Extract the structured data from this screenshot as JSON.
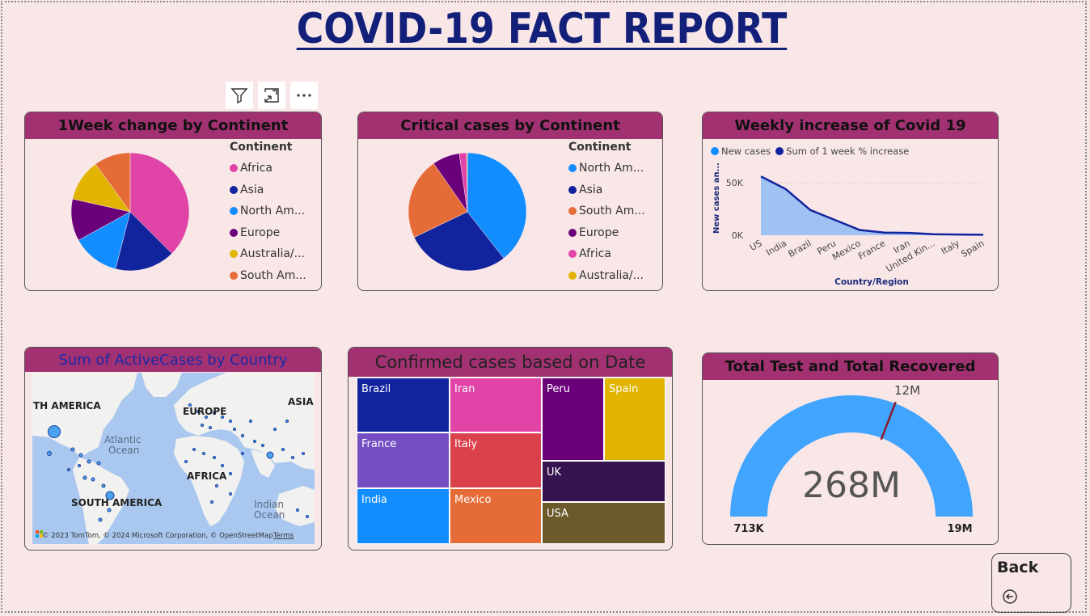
{
  "title": "COVID-19 FACT REPORT",
  "toolbar": {
    "icons": [
      "filter-icon",
      "focus-mode-icon",
      "more-options-icon"
    ]
  },
  "colors": {
    "background": "#f9e7e8",
    "header": "#a23172",
    "title": "#13207a",
    "africa": "#e044a7",
    "asia": "#12239e",
    "north_america": "#118dff",
    "europe": "#6b007b",
    "australia": "#e0b400",
    "south_america": "#e66c37"
  },
  "week_change": {
    "title": "1Week change by Continent",
    "legend_title": "Continent",
    "legend": [
      "Africa",
      "Asia",
      "North Am...",
      "Europe",
      "Australia/...",
      "South Am..."
    ]
  },
  "critical_cases": {
    "title": "Critical cases by Continent",
    "legend_title": "Continent",
    "legend": [
      "North Am...",
      "Asia",
      "South Am...",
      "Europe",
      "Africa",
      "Australia/..."
    ]
  },
  "weekly_increase": {
    "title": "Weekly increase of Covid 19",
    "legend": [
      "New cases",
      "Sum of 1 week % increase"
    ],
    "ylabel": "New cases an...",
    "xlabel": "Country/Region",
    "yticks": [
      "50K",
      "0K"
    ]
  },
  "active_cases": {
    "title": "Sum of ActiveCases by Country",
    "labels": {
      "north_america": "TH AMERICA",
      "europe": "EUROPE",
      "asia": "ASIA",
      "africa": "AFRICA",
      "south_america": "SOUTH AMERICA",
      "atlantic": "Atlantic",
      "ocean": "Ocean",
      "indian": "Indian",
      "indian_ocean": "Ocean"
    },
    "attribution": "© 2023 TomTom, © 2024 Microsoft Corporation, © OpenStreetMap",
    "terms": "Terms"
  },
  "confirmed_cases": {
    "title": "Confirmed cases based on Date",
    "cells": [
      "Brazil",
      "Iran",
      "Peru",
      "Spain",
      "France",
      "Italy",
      "UK",
      "India",
      "Mexico",
      "USA"
    ]
  },
  "gauge": {
    "title": "Total Test and Total Recovered",
    "value_label": "268M",
    "min_label": "713K",
    "max_label": "19M",
    "target_label": "12M"
  },
  "back": {
    "label": "Back"
  },
  "chart_data": [
    {
      "type": "pie",
      "title": "1Week change by Continent",
      "legend_title": "Continent",
      "categories": [
        "Africa",
        "Asia",
        "North America",
        "Europe",
        "Australia/Oceania",
        "South America"
      ],
      "values": [
        0.375,
        0.165,
        0.13,
        0.115,
        0.115,
        0.1
      ],
      "colors": [
        "#e044a7",
        "#12239e",
        "#118dff",
        "#6b007b",
        "#e0b400",
        "#e66c37"
      ]
    },
    {
      "type": "pie",
      "title": "Critical cases by Continent",
      "legend_title": "Continent",
      "categories": [
        "North America",
        "Asia",
        "South America",
        "Europe",
        "Africa",
        "Australia/Oceania"
      ],
      "values": [
        0.395,
        0.285,
        0.225,
        0.075,
        0.02,
        0.002
      ],
      "colors": [
        "#118dff",
        "#12239e",
        "#e66c37",
        "#6b007b",
        "#e044a7",
        "#e0b400"
      ]
    },
    {
      "type": "area",
      "title": "Weekly increase of Covid 19",
      "xlabel": "Country/Region",
      "ylabel": "New cases an...",
      "categories": [
        "US",
        "India",
        "Brazil",
        "Peru",
        "Mexico",
        "France",
        "Iran",
        "United Kin...",
        "Italy",
        "Spain"
      ],
      "ylim": [
        0,
        60000
      ],
      "series": [
        {
          "name": "New cases",
          "values": [
            56000,
            44000,
            24000,
            14500,
            5000,
            2500,
            2200,
            1000,
            700,
            500
          ]
        },
        {
          "name": "Sum of 1 week % increase",
          "values": [
            56000,
            44000,
            24000,
            14500,
            5000,
            2500,
            2200,
            1000,
            700,
            500
          ]
        }
      ]
    },
    {
      "type": "table",
      "title": "Confirmed cases based on Date",
      "categories": [
        "Brazil",
        "Iran",
        "France",
        "Italy",
        "India",
        "Mexico",
        "Peru",
        "Spain",
        "UK",
        "USA"
      ]
    },
    {
      "type": "gauge",
      "title": "Total Test and Total Recovered",
      "value": 268000000,
      "min": 713000,
      "max": 19000000,
      "target": 12000000
    }
  ]
}
